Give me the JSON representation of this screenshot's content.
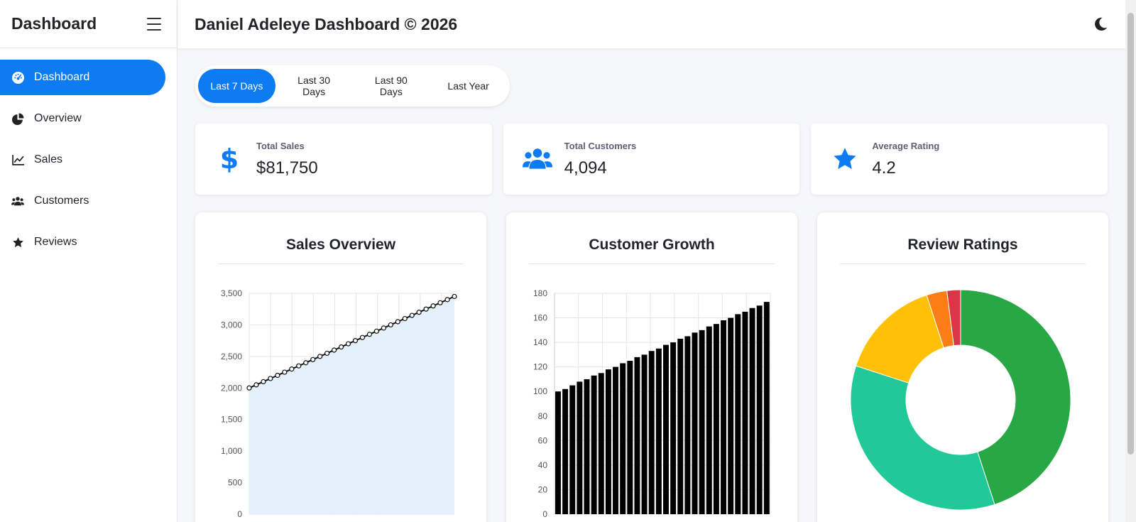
{
  "sidebar": {
    "brand": "Dashboard",
    "items": [
      {
        "label": "Dashboard",
        "icon": "gauge-icon",
        "active": true
      },
      {
        "label": "Overview",
        "icon": "pie-chart-icon",
        "active": false
      },
      {
        "label": "Sales",
        "icon": "line-chart-icon",
        "active": false
      },
      {
        "label": "Customers",
        "icon": "users-icon",
        "active": false
      },
      {
        "label": "Reviews",
        "icon": "star-icon",
        "active": false
      }
    ]
  },
  "topbar": {
    "title": "Daniel Adeleye Dashboard © 2026",
    "theme_icon": "moon-icon"
  },
  "ranges": [
    {
      "label": "Last 7 Days",
      "active": true
    },
    {
      "label": "Last 30 Days",
      "active": false
    },
    {
      "label": "Last 90 Days",
      "active": false
    },
    {
      "label": "Last Year",
      "active": false
    }
  ],
  "stats": [
    {
      "label": "Total Sales",
      "value": "$81,750",
      "icon": "dollar-icon"
    },
    {
      "label": "Total Customers",
      "value": "4,094",
      "icon": "users-icon"
    },
    {
      "label": "Average Rating",
      "value": "4.2",
      "icon": "star-icon"
    }
  ],
  "colors": {
    "accent": "#0d7cf2",
    "area_fill": "#e3f0fc",
    "line": "#111111",
    "bar": "#000000",
    "rating_5": "#28a745",
    "rating_4": "#20c997",
    "rating_3": "#ffc107",
    "rating_2": "#fd7e14",
    "rating_1": "#dc3545"
  },
  "charts": {
    "sales_title": "Sales Overview",
    "growth_title": "Customer Growth",
    "ratings_title": "Review Ratings"
  },
  "chart_data": [
    {
      "type": "area",
      "title": "Sales Overview",
      "y_ticks": [
        "0",
        "500",
        "1,000",
        "1,500",
        "2,000",
        "2,500",
        "3,000",
        "3,500"
      ],
      "ylim": [
        0,
        3500
      ],
      "grid": true,
      "series": [
        {
          "values": [
            2000,
            2050,
            2100,
            2150,
            2200,
            2250,
            2300,
            2350,
            2400,
            2450,
            2500,
            2550,
            2600,
            2650,
            2700,
            2750,
            2800,
            2850,
            2900,
            2950,
            3000,
            3050,
            3100,
            3150,
            3200,
            3250,
            3300,
            3350,
            3400,
            3450
          ]
        }
      ]
    },
    {
      "type": "bar",
      "title": "Customer Growth",
      "y_ticks": [
        "0",
        "20",
        "40",
        "60",
        "80",
        "100",
        "120",
        "140",
        "160",
        "180"
      ],
      "ylim": [
        0,
        180
      ],
      "grid": true,
      "series": [
        {
          "values": [
            100,
            102,
            105,
            108,
            110,
            113,
            115,
            118,
            120,
            123,
            125,
            128,
            130,
            133,
            135,
            138,
            140,
            143,
            145,
            148,
            150,
            153,
            155,
            158,
            160,
            163,
            165,
            168,
            170,
            173
          ]
        }
      ]
    },
    {
      "type": "pie",
      "title": "Review Ratings",
      "slices": [
        {
          "value": 45,
          "color_key": "rating_5"
        },
        {
          "value": 35,
          "color_key": "rating_4"
        },
        {
          "value": 15,
          "color_key": "rating_3"
        },
        {
          "value": 3,
          "color_key": "rating_2"
        },
        {
          "value": 2,
          "color_key": "rating_1"
        }
      ]
    }
  ]
}
